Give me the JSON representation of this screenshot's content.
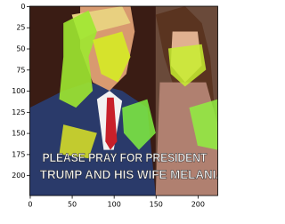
{
  "chart_data": {
    "type": "image",
    "image_text": [
      "PLEASE PRAY FOR PRESIDENT",
      "TRUMP AND HIS WIFE MELANIA"
    ],
    "xlim": [
      -0.5,
      223.5
    ],
    "ylim": [
      223.5,
      -0.5
    ],
    "xticks": [
      0,
      50,
      100,
      150,
      200
    ],
    "yticks": [
      0,
      25,
      50,
      75,
      100,
      125,
      150,
      175,
      200
    ]
  }
}
